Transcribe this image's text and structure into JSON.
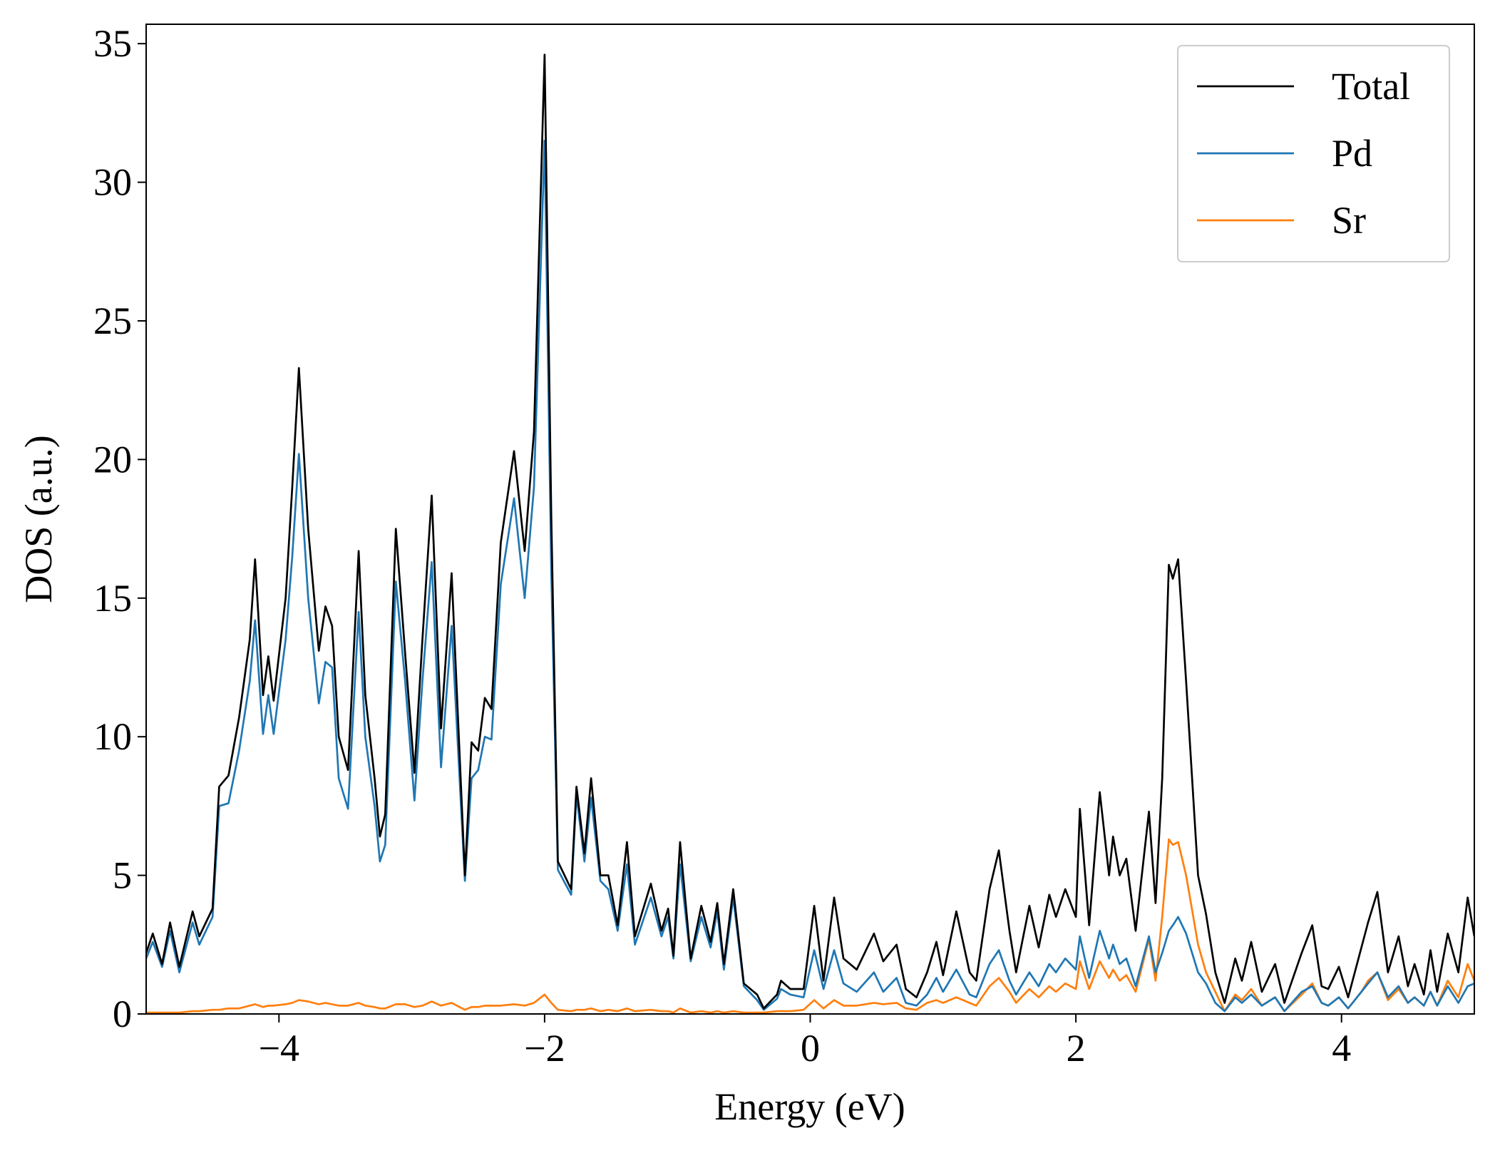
{
  "chart_data": {
    "type": "line",
    "x_label": "Energy (eV)",
    "y_label": "DOS (a.u.)",
    "xlim": [
      -5,
      5
    ],
    "ylim": [
      0,
      35.7
    ],
    "xticks": [
      {
        "value": -4,
        "label": "−4"
      },
      {
        "value": -2,
        "label": "−2"
      },
      0,
      2,
      4
    ],
    "yticks": [
      0,
      5,
      10,
      15,
      20,
      25,
      30,
      35
    ],
    "legend": "upper-right",
    "x": [
      -5.0,
      -4.95,
      -4.88,
      -4.82,
      -4.75,
      -4.65,
      -4.6,
      -4.5,
      -4.45,
      -4.38,
      -4.3,
      -4.22,
      -4.18,
      -4.12,
      -4.08,
      -4.04,
      -3.95,
      -3.9,
      -3.85,
      -3.78,
      -3.7,
      -3.65,
      -3.6,
      -3.55,
      -3.48,
      -3.4,
      -3.35,
      -3.28,
      -3.24,
      -3.2,
      -3.12,
      -3.05,
      -2.98,
      -2.92,
      -2.85,
      -2.78,
      -2.7,
      -2.6,
      -2.55,
      -2.5,
      -2.45,
      -2.4,
      -2.33,
      -2.23,
      -2.15,
      -2.08,
      -2.0,
      -1.95,
      -1.9,
      -1.8,
      -1.76,
      -1.7,
      -1.65,
      -1.58,
      -1.52,
      -1.45,
      -1.38,
      -1.32,
      -1.2,
      -1.12,
      -1.07,
      -1.03,
      -0.98,
      -0.9,
      -0.82,
      -0.75,
      -0.7,
      -0.65,
      -0.58,
      -0.5,
      -0.4,
      -0.35,
      -0.25,
      -0.22,
      -0.15,
      -0.05,
      0.03,
      0.1,
      0.18,
      0.25,
      0.35,
      0.48,
      0.55,
      0.65,
      0.72,
      0.8,
      0.88,
      0.95,
      1.0,
      1.1,
      1.2,
      1.25,
      1.35,
      1.42,
      1.5,
      1.55,
      1.65,
      1.72,
      1.8,
      1.85,
      1.92,
      2.0,
      2.03,
      2.1,
      2.18,
      2.25,
      2.28,
      2.33,
      2.38,
      2.45,
      2.55,
      2.6,
      2.65,
      2.7,
      2.73,
      2.77,
      2.83,
      2.92,
      2.98,
      3.05,
      3.12,
      3.2,
      3.25,
      3.32,
      3.4,
      3.5,
      3.57,
      3.7,
      3.78,
      3.85,
      3.9,
      3.98,
      4.05,
      4.15,
      4.2,
      4.27,
      4.35,
      4.43,
      4.5,
      4.55,
      4.62,
      4.67,
      4.72,
      4.8,
      4.88,
      4.95,
      5.0
    ],
    "series": [
      {
        "name": "Total",
        "color": "#000000",
        "values": [
          2.2,
          2.9,
          1.8,
          3.3,
          1.7,
          3.7,
          2.8,
          3.8,
          8.2,
          8.6,
          10.7,
          13.5,
          16.4,
          11.5,
          12.9,
          11.3,
          15.0,
          19.0,
          23.3,
          17.5,
          13.1,
          14.7,
          14.0,
          10.0,
          8.8,
          16.7,
          11.5,
          8.5,
          6.4,
          7.2,
          17.5,
          13.0,
          8.7,
          13.5,
          18.7,
          10.3,
          15.9,
          5.0,
          9.8,
          9.5,
          11.4,
          11.0,
          17.0,
          20.3,
          16.7,
          21.0,
          34.6,
          18.0,
          5.5,
          4.5,
          8.2,
          5.8,
          8.5,
          5.0,
          5.0,
          3.2,
          6.2,
          2.8,
          4.7,
          3.0,
          3.8,
          2.1,
          6.2,
          2.0,
          3.9,
          2.6,
          4.0,
          1.8,
          4.5,
          1.1,
          0.7,
          0.2,
          0.7,
          1.2,
          0.9,
          0.9,
          3.9,
          1.2,
          4.2,
          2.0,
          1.6,
          2.9,
          1.9,
          2.5,
          0.9,
          0.6,
          1.5,
          2.6,
          1.4,
          3.7,
          1.5,
          1.2,
          4.5,
          5.9,
          3.0,
          1.5,
          3.9,
          2.4,
          4.3,
          3.5,
          4.5,
          3.5,
          7.4,
          3.2,
          8.0,
          5.0,
          6.4,
          5.0,
          5.6,
          3.0,
          7.3,
          4.0,
          8.5,
          16.2,
          15.7,
          16.4,
          12.0,
          5.0,
          3.6,
          1.5,
          0.4,
          2.0,
          1.2,
          2.6,
          0.8,
          1.8,
          0.4,
          2.2,
          3.2,
          1.0,
          0.9,
          1.7,
          0.6,
          2.4,
          3.3,
          4.4,
          1.5,
          2.8,
          1.0,
          1.8,
          0.7,
          2.3,
          0.8,
          2.9,
          1.5,
          4.2,
          2.8
        ]
      },
      {
        "name": "Pd",
        "color": "#1f77b4",
        "values": [
          2.0,
          2.6,
          1.7,
          3.0,
          1.5,
          3.3,
          2.5,
          3.5,
          7.5,
          7.6,
          9.5,
          12.0,
          14.2,
          10.1,
          11.5,
          10.1,
          13.5,
          16.5,
          20.2,
          15.0,
          11.2,
          12.7,
          12.5,
          8.5,
          7.4,
          14.5,
          10.0,
          7.5,
          5.5,
          6.1,
          15.6,
          12.0,
          7.7,
          12.0,
          16.3,
          8.9,
          14.0,
          4.8,
          8.5,
          8.8,
          10.0,
          9.9,
          15.5,
          18.6,
          15.0,
          19.0,
          31.5,
          16.0,
          5.2,
          4.3,
          7.9,
          5.5,
          7.8,
          4.8,
          4.5,
          3.0,
          5.4,
          2.5,
          4.2,
          2.8,
          3.5,
          2.0,
          5.4,
          1.9,
          3.5,
          2.4,
          3.7,
          1.6,
          4.2,
          1.0,
          0.5,
          0.15,
          0.55,
          0.9,
          0.7,
          0.6,
          2.3,
          0.9,
          2.3,
          1.1,
          0.8,
          1.5,
          0.8,
          1.3,
          0.4,
          0.3,
          0.7,
          1.3,
          0.8,
          1.6,
          0.7,
          0.6,
          1.8,
          2.3,
          1.2,
          0.7,
          1.5,
          1.0,
          1.8,
          1.5,
          2.0,
          1.6,
          2.8,
          1.3,
          3.0,
          2.0,
          2.5,
          1.8,
          2.0,
          1.0,
          2.8,
          1.5,
          2.2,
          3.0,
          3.2,
          3.5,
          2.9,
          1.5,
          1.1,
          0.4,
          0.1,
          0.6,
          0.4,
          0.7,
          0.3,
          0.6,
          0.1,
          0.8,
          1.0,
          0.4,
          0.3,
          0.6,
          0.2,
          0.8,
          1.1,
          1.5,
          0.6,
          1.0,
          0.4,
          0.6,
          0.3,
          0.8,
          0.3,
          1.0,
          0.4,
          1.0,
          1.1
        ]
      },
      {
        "name": "Sr",
        "color": "#ff7f0e",
        "values": [
          0.05,
          0.05,
          0.05,
          0.05,
          0.05,
          0.1,
          0.1,
          0.15,
          0.15,
          0.2,
          0.2,
          0.3,
          0.35,
          0.25,
          0.3,
          0.3,
          0.35,
          0.4,
          0.5,
          0.45,
          0.35,
          0.4,
          0.35,
          0.3,
          0.3,
          0.4,
          0.3,
          0.25,
          0.2,
          0.2,
          0.35,
          0.35,
          0.25,
          0.3,
          0.45,
          0.3,
          0.4,
          0.15,
          0.25,
          0.25,
          0.3,
          0.3,
          0.3,
          0.35,
          0.3,
          0.4,
          0.7,
          0.4,
          0.15,
          0.1,
          0.15,
          0.15,
          0.2,
          0.1,
          0.15,
          0.1,
          0.2,
          0.1,
          0.15,
          0.1,
          0.1,
          0.05,
          0.2,
          0.05,
          0.1,
          0.05,
          0.1,
          0.05,
          0.1,
          0.05,
          0.05,
          0.05,
          0.1,
          0.1,
          0.1,
          0.15,
          0.5,
          0.2,
          0.5,
          0.3,
          0.3,
          0.4,
          0.35,
          0.4,
          0.2,
          0.15,
          0.4,
          0.5,
          0.4,
          0.6,
          0.4,
          0.3,
          1.0,
          1.3,
          0.8,
          0.4,
          0.9,
          0.6,
          1.0,
          0.8,
          1.1,
          0.9,
          1.9,
          0.9,
          1.9,
          1.3,
          1.6,
          1.2,
          1.4,
          0.8,
          2.7,
          1.2,
          3.5,
          6.3,
          6.1,
          6.2,
          5.0,
          2.5,
          1.5,
          0.8,
          0.1,
          0.7,
          0.5,
          0.9,
          0.3,
          0.6,
          0.1,
          0.7,
          1.1,
          0.4,
          0.3,
          0.6,
          0.2,
          0.8,
          1.2,
          1.5,
          0.5,
          0.9,
          0.4,
          0.6,
          0.3,
          0.8,
          0.3,
          1.2,
          0.6,
          1.8,
          1.2
        ]
      }
    ]
  }
}
